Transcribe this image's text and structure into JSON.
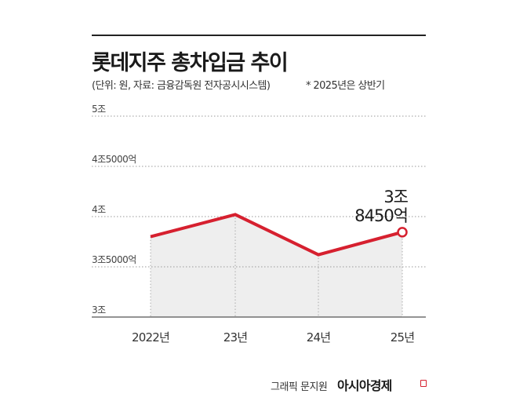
{
  "header": {
    "title": "롯데지주 총차입금 추이",
    "subtitle": "(단위: 원, 자료: 금융감독원 전자공시시스템)",
    "note": "* 2025년은 상반기"
  },
  "chart_data": {
    "type": "area",
    "categories": [
      "2022년",
      "23년",
      "24년",
      "25년"
    ],
    "values": [
      38000,
      40200,
      36200,
      38450
    ],
    "y_ticks": [
      {
        "value": 30000,
        "label": "3조"
      },
      {
        "value": 35000,
        "label": "3조5000억"
      },
      {
        "value": 40000,
        "label": "4조"
      },
      {
        "value": 45000,
        "label": "4조5000억"
      },
      {
        "value": 50000,
        "label": "5조"
      }
    ],
    "ylim": [
      30000,
      50000
    ],
    "grid": true,
    "callout": {
      "index": 3,
      "lines": [
        "3조",
        "8450억"
      ]
    },
    "colors": {
      "line": "#d6202f",
      "fill": "#eeeeee",
      "grid": "#999999",
      "drop": "#aaaaaa"
    }
  },
  "footer": {
    "credit": "그래픽 문지원",
    "brand": "아시아경제"
  }
}
